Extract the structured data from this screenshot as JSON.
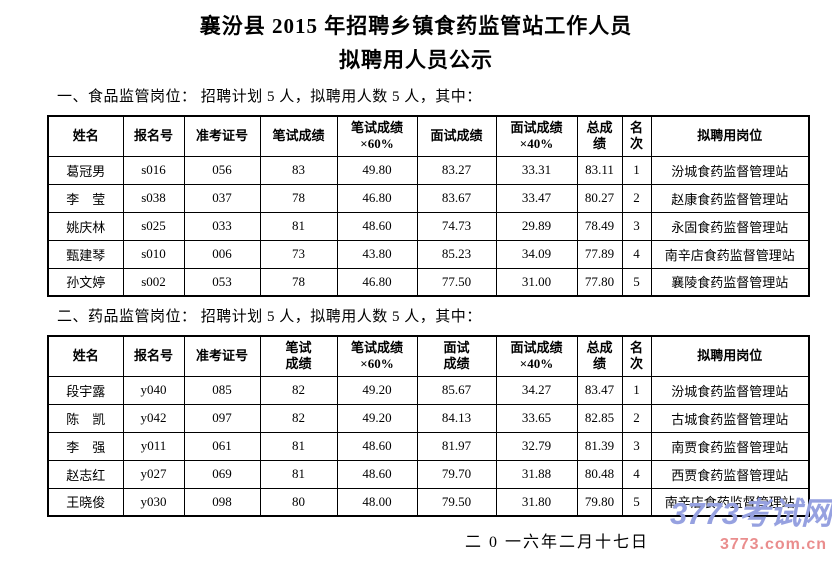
{
  "title": {
    "line1": "襄汾县 2015 年招聘乡镇食药监管站工作人员",
    "line2": "拟聘用人员公示"
  },
  "sections": [
    {
      "heading": "一、食品监管岗位：  招聘计划 5 人，拟聘用人数 5 人，其中：",
      "columns": [
        "姓名",
        "报名号",
        "准考证号",
        "笔试成绩",
        "笔试成绩\n×60%",
        "面试成绩",
        "面试成绩\n×40%",
        "总成\n绩",
        "名\n次",
        "拟聘用岗位"
      ],
      "rows": [
        [
          "葛冠男",
          "s016",
          "056",
          "83",
          "49.80",
          "83.27",
          "33.31",
          "83.11",
          "1",
          "汾城食药监督管理站"
        ],
        [
          "李　莹",
          "s038",
          "037",
          "78",
          "46.80",
          "83.67",
          "33.47",
          "80.27",
          "2",
          "赵康食药监督管理站"
        ],
        [
          "姚庆林",
          "s025",
          "033",
          "81",
          "48.60",
          "74.73",
          "29.89",
          "78.49",
          "3",
          "永固食药监督管理站"
        ],
        [
          "甄建琴",
          "s010",
          "006",
          "73",
          "43.80",
          "85.23",
          "34.09",
          "77.89",
          "4",
          "南辛店食药监督管理站"
        ],
        [
          "孙文婷",
          "s002",
          "053",
          "78",
          "46.80",
          "77.50",
          "31.00",
          "77.80",
          "5",
          "襄陵食药监督管理站"
        ]
      ]
    },
    {
      "heading": "二、药品监管岗位：  招聘计划 5 人，拟聘用人数 5 人，其中：",
      "columns": [
        "姓名",
        "报名号",
        "准考证号",
        "笔试\n成绩",
        "笔试成绩\n×60%",
        "面试\n成绩",
        "面试成绩\n×40%",
        "总成\n绩",
        "名\n次",
        "拟聘用岗位"
      ],
      "rows": [
        [
          "段宇露",
          "y040",
          "085",
          "82",
          "49.20",
          "85.67",
          "34.27",
          "83.47",
          "1",
          "汾城食药监督管理站"
        ],
        [
          "陈　凯",
          "y042",
          "097",
          "82",
          "49.20",
          "84.13",
          "33.65",
          "82.85",
          "2",
          "古城食药监督管理站"
        ],
        [
          "李　强",
          "y011",
          "061",
          "81",
          "48.60",
          "81.97",
          "32.79",
          "81.39",
          "3",
          "南贾食药监督管理站"
        ],
        [
          "赵志红",
          "y027",
          "069",
          "81",
          "48.60",
          "79.70",
          "31.88",
          "80.48",
          "4",
          "西贾食药监督管理站"
        ],
        [
          "王晓俊",
          "y030",
          "098",
          "80",
          "48.00",
          "79.50",
          "31.80",
          "79.80",
          "5",
          "南辛店食药监督管理站"
        ]
      ]
    }
  ],
  "date": "二 0 一六年二月十七日",
  "watermark": {
    "logo": "3773考试网",
    "url": "3773.com.cn",
    "logo_color": "#96a1e0",
    "url_color": "#ea8d8d"
  }
}
